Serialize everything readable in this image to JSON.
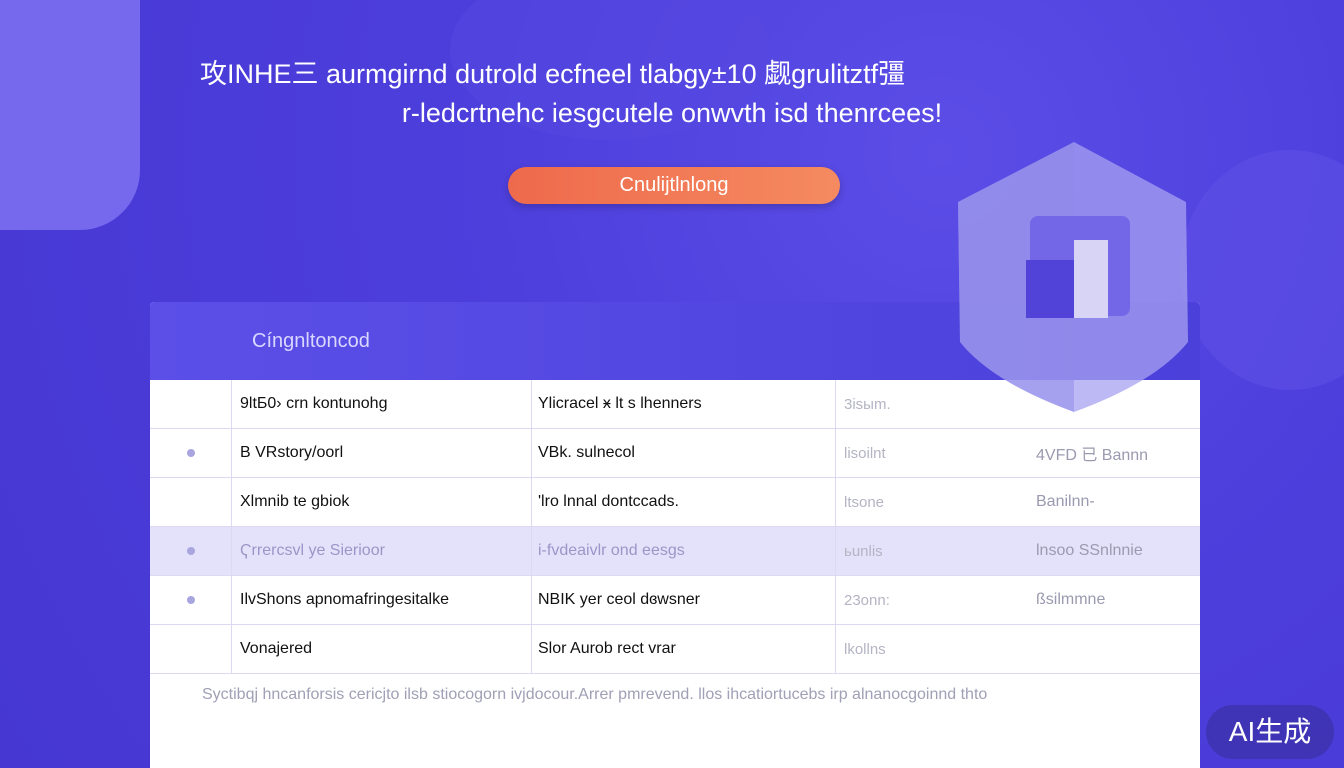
{
  "hero": {
    "line1": "攻INHE三 aurmgirnd dutrold  ecfneel tlabgy±10 觑grulitztf彊",
    "line2": "r-ledcrtnehc iesgcutele onwvth isd thenrcees!",
    "cta_label": "Cnulijtlnlong"
  },
  "panel": {
    "title": "Cíngnltoncod",
    "rows": [
      {
        "marker": false,
        "c1": "9ltБ0› crn kontunohg",
        "c2": "Ylicracel ӿ lt s lhenners",
        "c3": "3isыm.",
        "c4": "",
        "highlight": false
      },
      {
        "marker": true,
        "c1": "B VRstory/oorl",
        "c2": "VBk. sulnecol",
        "c3": "lisoilnt",
        "c4": "4VFD 已 Bannn",
        "highlight": false
      },
      {
        "marker": false,
        "c1": "Xlmnib te gbiok",
        "c2": "'lro lnnal dontccads.",
        "c3": "ltsone",
        "c4": "Banilnn-",
        "highlight": false
      },
      {
        "marker": true,
        "c1": "Ҁrrercsvl ye Sierioor",
        "c2": "i-fvdeaivlr ond eesgs",
        "c3": "ьunlis",
        "c4": "lnsoo SSnlnnie",
        "highlight": true
      },
      {
        "marker": true,
        "c1": "IlvShons apnomafringesitalke",
        "c2": "NBIK yer ceol dɞwsner",
        "c3": "23onn:",
        "c4": "ßsilmmne",
        "highlight": false
      },
      {
        "marker": false,
        "c1": "Vonajered",
        "c2": "Slor  Aurob rect vrar",
        "c3": "lkollns",
        "c4": "",
        "highlight": false
      }
    ],
    "footer": "Syctibqj hncanforsis cericjto ilsb stiocogorn ivjdocour.Arrer pmrevend. llos ihcatiortucebs irp alnanocgoinnd thto"
  },
  "badge": "AI生成",
  "colors": {
    "background": "#4d3fdc",
    "cta": "#f07050",
    "highlight_row": "#e4e2fa"
  }
}
